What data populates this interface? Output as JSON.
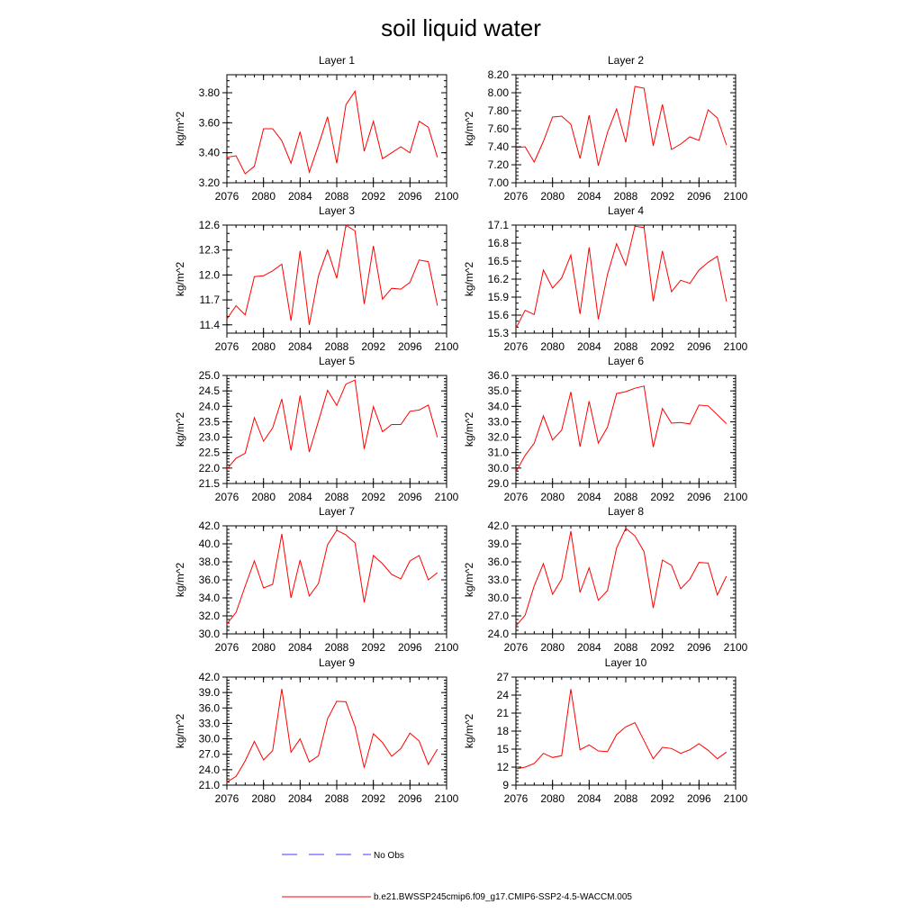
{
  "figure": {
    "title": "soil liquid water"
  },
  "legend": {
    "obs_label": "No Obs",
    "model_label": "b.e21.BWSSP245cmip6.f09_g17.CMIP6-SSP2-4.5-WACCM.005",
    "obs_color": "#3c3cff",
    "model_color": "#ff0000"
  },
  "chart_data": [
    {
      "type": "line",
      "title": "Layer 1",
      "ylabel": "kg/m^2",
      "xlim": [
        2076,
        2100
      ],
      "ylim": [
        3.2,
        3.92
      ],
      "xticks": [
        2076,
        2080,
        2084,
        2088,
        2092,
        2096,
        2100
      ],
      "xminor": 1,
      "yticks": [
        "3.20",
        "3.40",
        "3.60",
        "3.80"
      ],
      "yminor": 0.04,
      "series": [
        {
          "color": "#ff0000",
          "x": [
            2076,
            2077,
            2078,
            2079,
            2080,
            2081,
            2082,
            2083,
            2084,
            2085,
            2086,
            2087,
            2088,
            2089,
            2090,
            2091,
            2092,
            2093,
            2094,
            2095,
            2096,
            2097,
            2098,
            2099
          ],
          "values": [
            3.37,
            3.38,
            3.26,
            3.31,
            3.56,
            3.56,
            3.48,
            3.33,
            3.54,
            3.27,
            3.45,
            3.64,
            3.33,
            3.72,
            3.81,
            3.41,
            3.61,
            3.36,
            3.4,
            3.44,
            3.4,
            3.61,
            3.57,
            3.37
          ]
        }
      ]
    },
    {
      "type": "line",
      "title": "Layer 2",
      "ylabel": "kg/m^2",
      "xlim": [
        2076,
        2100
      ],
      "ylim": [
        7.0,
        8.2
      ],
      "xticks": [
        2076,
        2080,
        2084,
        2088,
        2092,
        2096,
        2100
      ],
      "xminor": 1,
      "yticks": [
        "7.00",
        "7.20",
        "7.40",
        "7.60",
        "7.80",
        "8.00",
        "8.20"
      ],
      "yminor": 0.04,
      "series": [
        {
          "color": "#ff0000",
          "x": [
            2076,
            2077,
            2078,
            2079,
            2080,
            2081,
            2082,
            2083,
            2084,
            2085,
            2086,
            2087,
            2088,
            2089,
            2090,
            2091,
            2092,
            2093,
            2094,
            2095,
            2096,
            2097,
            2098,
            2099
          ],
          "values": [
            7.39,
            7.4,
            7.23,
            7.46,
            7.73,
            7.74,
            7.65,
            7.27,
            7.75,
            7.19,
            7.56,
            7.82,
            7.45,
            8.07,
            8.05,
            7.41,
            7.87,
            7.37,
            7.43,
            7.51,
            7.47,
            7.81,
            7.72,
            7.42
          ]
        }
      ]
    },
    {
      "type": "line",
      "title": "Layer 3",
      "ylabel": "kg/m^2",
      "xlim": [
        2076,
        2100
      ],
      "ylim": [
        11.3,
        12.6
      ],
      "xticks": [
        2076,
        2080,
        2084,
        2088,
        2092,
        2096,
        2100
      ],
      "xminor": 1,
      "yticks": [
        "11.4",
        "11.7",
        "12.0",
        "12.3",
        "12.6"
      ],
      "yminor": 0.1,
      "series": [
        {
          "color": "#ff0000",
          "x": [
            2076,
            2077,
            2078,
            2079,
            2080,
            2081,
            2082,
            2083,
            2084,
            2085,
            2086,
            2087,
            2088,
            2089,
            2090,
            2091,
            2092,
            2093,
            2094,
            2095,
            2096,
            2097,
            2098,
            2099
          ],
          "values": [
            11.47,
            11.63,
            11.52,
            11.98,
            11.99,
            12.05,
            12.13,
            11.45,
            12.29,
            11.4,
            11.99,
            12.3,
            11.96,
            12.6,
            12.53,
            11.65,
            12.35,
            11.71,
            11.84,
            11.83,
            11.91,
            12.18,
            12.16,
            11.63
          ]
        }
      ]
    },
    {
      "type": "line",
      "title": "Layer 4",
      "ylabel": "kg/m^2",
      "xlim": [
        2076,
        2100
      ],
      "ylim": [
        15.3,
        17.1
      ],
      "xticks": [
        2076,
        2080,
        2084,
        2088,
        2092,
        2096,
        2100
      ],
      "xminor": 1,
      "yticks": [
        "15.3",
        "15.6",
        "15.9",
        "16.2",
        "16.5",
        "16.8",
        "17.1"
      ],
      "yminor": 0.1,
      "series": [
        {
          "color": "#ff0000",
          "x": [
            2076,
            2077,
            2078,
            2079,
            2080,
            2081,
            2082,
            2083,
            2084,
            2085,
            2086,
            2087,
            2088,
            2089,
            2090,
            2091,
            2092,
            2093,
            2094,
            2095,
            2096,
            2097,
            2098,
            2099
          ],
          "values": [
            15.38,
            15.68,
            15.61,
            16.35,
            16.05,
            16.22,
            16.6,
            15.62,
            16.73,
            15.53,
            16.28,
            16.79,
            16.43,
            17.08,
            17.06,
            15.83,
            16.67,
            15.99,
            16.18,
            16.13,
            16.35,
            16.48,
            16.58,
            15.83
          ]
        }
      ]
    },
    {
      "type": "line",
      "title": "Layer 5",
      "ylabel": "kg/m^2",
      "xlim": [
        2076,
        2100
      ],
      "ylim": [
        21.5,
        25.0
      ],
      "xticks": [
        2076,
        2080,
        2084,
        2088,
        2092,
        2096,
        2100
      ],
      "xminor": 1,
      "yticks": [
        "21.5",
        "22.0",
        "22.5",
        "23.0",
        "23.5",
        "24.0",
        "24.5",
        "25.0"
      ],
      "yminor": 0.1,
      "series": [
        {
          "color": "#ff0000",
          "x": [
            2076,
            2077,
            2078,
            2079,
            2080,
            2081,
            2082,
            2083,
            2084,
            2085,
            2086,
            2087,
            2088,
            2089,
            2090,
            2091,
            2092,
            2093,
            2094,
            2095,
            2096,
            2097,
            2098,
            2099
          ],
          "values": [
            21.97,
            22.32,
            22.48,
            23.63,
            22.87,
            23.3,
            24.24,
            22.57,
            24.35,
            22.52,
            23.52,
            24.52,
            24.03,
            24.72,
            24.85,
            22.62,
            23.99,
            23.18,
            23.41,
            23.41,
            23.84,
            23.88,
            24.04,
            23.0
          ]
        }
      ]
    },
    {
      "type": "line",
      "title": "Layer 6",
      "ylabel": "kg/m^2",
      "xlim": [
        2076,
        2100
      ],
      "ylim": [
        29.0,
        36.0
      ],
      "xticks": [
        2076,
        2080,
        2084,
        2088,
        2092,
        2096,
        2100
      ],
      "xminor": 1,
      "yticks": [
        "29.0",
        "30.0",
        "31.0",
        "32.0",
        "33.0",
        "34.0",
        "35.0",
        "36.0"
      ],
      "yminor": 0.2,
      "series": [
        {
          "color": "#ff0000",
          "x": [
            2076,
            2077,
            2078,
            2079,
            2080,
            2081,
            2082,
            2083,
            2084,
            2085,
            2086,
            2087,
            2088,
            2089,
            2090,
            2091,
            2092,
            2093,
            2094,
            2095,
            2096,
            2097,
            2098,
            2099
          ],
          "values": [
            29.75,
            30.82,
            31.61,
            33.38,
            31.82,
            32.46,
            34.93,
            31.38,
            34.33,
            31.62,
            32.65,
            34.83,
            34.95,
            35.17,
            35.31,
            31.36,
            33.86,
            32.91,
            32.95,
            32.86,
            34.08,
            34.03,
            33.45,
            32.88
          ]
        }
      ]
    },
    {
      "type": "line",
      "title": "Layer 7",
      "ylabel": "kg/m^2",
      "xlim": [
        2076,
        2100
      ],
      "ylim": [
        30.0,
        42.0
      ],
      "xticks": [
        2076,
        2080,
        2084,
        2088,
        2092,
        2096,
        2100
      ],
      "xminor": 1,
      "yticks": [
        "30.0",
        "32.0",
        "34.0",
        "36.0",
        "38.0",
        "40.0",
        "42.0"
      ],
      "yminor": 0.4,
      "series": [
        {
          "color": "#ff0000",
          "x": [
            2076,
            2077,
            2078,
            2079,
            2080,
            2081,
            2082,
            2083,
            2084,
            2085,
            2086,
            2087,
            2088,
            2089,
            2090,
            2091,
            2092,
            2093,
            2094,
            2095,
            2096,
            2097,
            2098,
            2099
          ],
          "values": [
            31.1,
            32.4,
            35.3,
            38.1,
            35.1,
            35.5,
            41.1,
            34.0,
            38.2,
            34.2,
            35.6,
            39.9,
            41.5,
            41.0,
            40.1,
            33.5,
            38.7,
            37.8,
            36.6,
            36.1,
            38.1,
            38.7,
            36.0,
            36.8
          ]
        }
      ]
    },
    {
      "type": "line",
      "title": "Layer 8",
      "ylabel": "kg/m^2",
      "xlim": [
        2076,
        2100
      ],
      "ylim": [
        24.0,
        42.0
      ],
      "xticks": [
        2076,
        2080,
        2084,
        2088,
        2092,
        2096,
        2100
      ],
      "xminor": 1,
      "yticks": [
        "24.0",
        "27.0",
        "30.0",
        "33.0",
        "36.0",
        "39.0",
        "42.0"
      ],
      "yminor": 0.6,
      "series": [
        {
          "color": "#ff0000",
          "x": [
            2076,
            2077,
            2078,
            2079,
            2080,
            2081,
            2082,
            2083,
            2084,
            2085,
            2086,
            2087,
            2088,
            2089,
            2090,
            2091,
            2092,
            2093,
            2094,
            2095,
            2096,
            2097,
            2098,
            2099
          ],
          "values": [
            25.3,
            27.1,
            32.0,
            35.7,
            30.6,
            33.1,
            41.1,
            30.9,
            35.0,
            29.6,
            31.2,
            38.3,
            41.6,
            40.3,
            37.7,
            28.3,
            36.3,
            35.4,
            31.5,
            33.1,
            35.9,
            35.8,
            30.5,
            33.6
          ]
        }
      ]
    },
    {
      "type": "line",
      "title": "Layer 9",
      "ylabel": "kg/m^2",
      "xlim": [
        2076,
        2100
      ],
      "ylim": [
        21.0,
        42.0
      ],
      "xticks": [
        2076,
        2080,
        2084,
        2088,
        2092,
        2096,
        2100
      ],
      "xminor": 1,
      "yticks": [
        "21.0",
        "24.0",
        "27.0",
        "30.0",
        "33.0",
        "36.0",
        "39.0",
        "42.0"
      ],
      "yminor": 0.6,
      "series": [
        {
          "color": "#ff0000",
          "x": [
            2076,
            2077,
            2078,
            2079,
            2080,
            2081,
            2082,
            2083,
            2084,
            2085,
            2086,
            2087,
            2088,
            2089,
            2090,
            2091,
            2092,
            2093,
            2094,
            2095,
            2096,
            2097,
            2098,
            2099
          ],
          "values": [
            21.6,
            22.7,
            25.7,
            29.5,
            25.9,
            27.7,
            39.7,
            27.4,
            30.0,
            25.5,
            26.7,
            33.9,
            37.3,
            37.2,
            32.4,
            24.4,
            31.0,
            29.3,
            26.6,
            28.1,
            31.1,
            29.6,
            25.0,
            28.0
          ]
        }
      ]
    },
    {
      "type": "line",
      "title": "Layer 10",
      "ylabel": "kg/m^2",
      "xlim": [
        2076,
        2100
      ],
      "ylim": [
        9,
        27
      ],
      "xticks": [
        2076,
        2080,
        2084,
        2088,
        2092,
        2096,
        2100
      ],
      "xminor": 1,
      "yticks": [
        "9",
        "12",
        "15",
        "18",
        "21",
        "24",
        "27"
      ],
      "yminor": 0.6,
      "series": [
        {
          "color": "#ff0000",
          "x": [
            2076,
            2077,
            2078,
            2079,
            2080,
            2081,
            2082,
            2083,
            2084,
            2085,
            2086,
            2087,
            2088,
            2089,
            2090,
            2091,
            2092,
            2093,
            2094,
            2095,
            2096,
            2097,
            2098,
            2099
          ],
          "values": [
            11.7,
            12.0,
            12.6,
            14.3,
            13.6,
            13.9,
            25.0,
            14.9,
            15.7,
            14.7,
            14.6,
            17.4,
            18.7,
            19.4,
            16.4,
            13.4,
            15.3,
            15.1,
            14.3,
            14.9,
            15.9,
            14.8,
            13.4,
            14.5
          ]
        }
      ]
    }
  ]
}
